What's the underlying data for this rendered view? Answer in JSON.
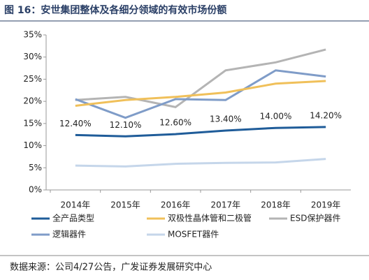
{
  "chart_data": {
    "type": "line",
    "title": "图 16：安世集团整体及各细分领域的有效市场份额",
    "source": "数据来源：公司4/27公告，广发证券发展研究中心",
    "categories": [
      "2014年",
      "2015年",
      "2016年",
      "2017年",
      "2018年",
      "2019年"
    ],
    "ylim": [
      0,
      35
    ],
    "yticks": [
      {
        "value": 0,
        "label": "0%"
      },
      {
        "value": 5,
        "label": "5%"
      },
      {
        "value": 10,
        "label": "10%"
      },
      {
        "value": 15,
        "label": "15%"
      },
      {
        "value": 20,
        "label": "20%"
      },
      {
        "value": 25,
        "label": "25%"
      },
      {
        "value": 30,
        "label": "30%"
      },
      {
        "value": 35,
        "label": "35%"
      }
    ],
    "grid": false,
    "series": [
      {
        "name": "全产品类型",
        "color": "#1f5c99",
        "values": [
          12.4,
          12.1,
          12.6,
          13.4,
          14.0,
          14.2
        ],
        "value_labels": [
          "12.40%",
          "12.10%",
          "12.60%",
          "13.40%",
          "14.00%",
          "14.20%"
        ]
      },
      {
        "name": "双极性晶体管和二极管",
        "color": "#f0c05a",
        "values": [
          19.0,
          20.3,
          21.0,
          22.0,
          24.0,
          24.6
        ]
      },
      {
        "name": "ESD保护器件",
        "color": "#b4b4b4",
        "values": [
          20.3,
          21.0,
          18.7,
          27.0,
          28.8,
          31.7
        ]
      },
      {
        "name": "逻辑器件",
        "color": "#7f9cc8",
        "values": [
          20.5,
          16.3,
          20.5,
          20.3,
          27.0,
          25.6
        ]
      },
      {
        "name": "MOSFET器件",
        "color": "#c5d6ea",
        "values": [
          5.5,
          5.3,
          5.9,
          6.1,
          6.2,
          7.0
        ]
      }
    ]
  }
}
